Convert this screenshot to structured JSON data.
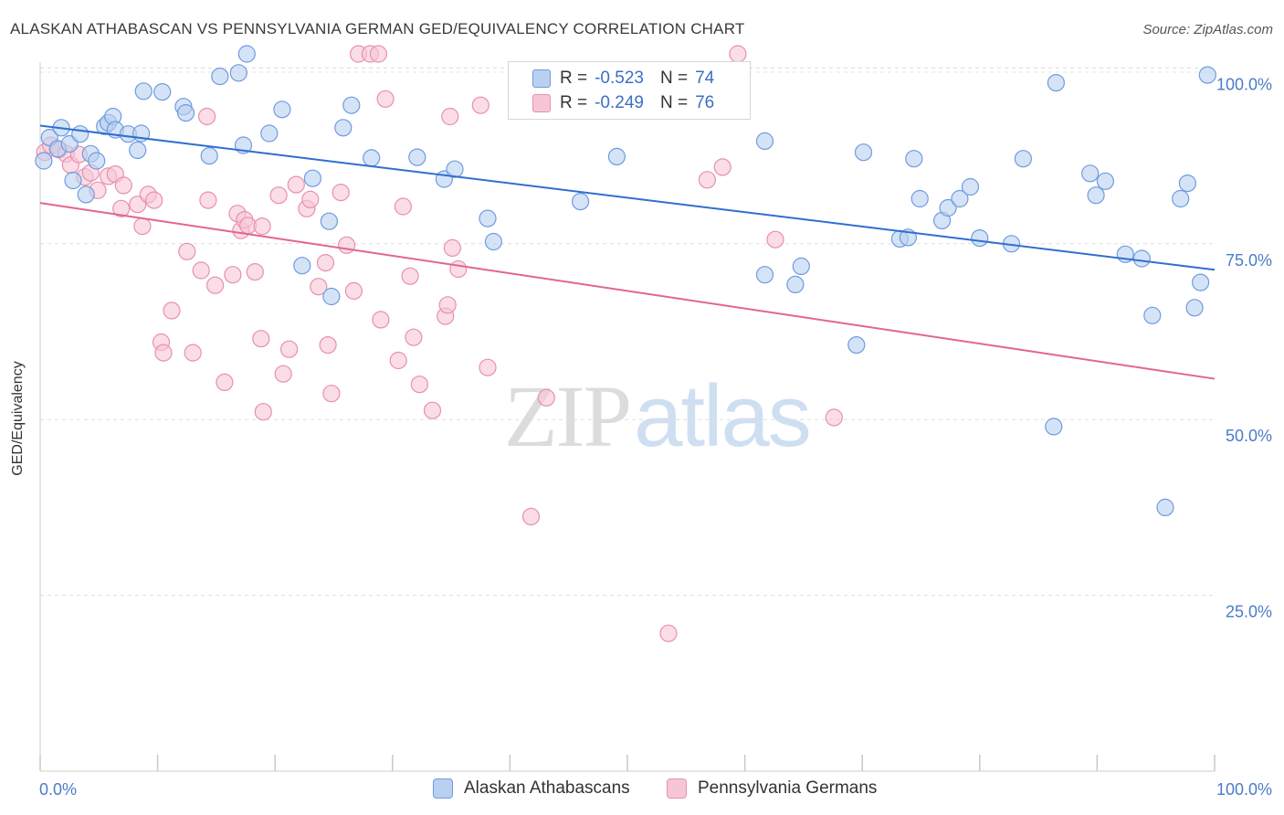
{
  "header": {
    "title": "ALASKAN ATHABASCAN VS PENNSYLVANIA GERMAN GED/EQUIVALENCY CORRELATION CHART",
    "source": "Source: ZipAtlas.com"
  },
  "watermark": {
    "zip": "ZIP",
    "atlas": "atlas"
  },
  "legend_top": {
    "rows": [
      {
        "r_label": "R =",
        "r_value": "-0.523",
        "n_label": "N =",
        "n_value": "74"
      },
      {
        "r_label": "R =",
        "r_value": "-0.249",
        "n_label": "N =",
        "n_value": "76"
      }
    ]
  },
  "legend_bottom": {
    "items": [
      "Alaskan Athabascans",
      "Pennsylvania Germans"
    ]
  },
  "colors": {
    "blue_fill": "#b9d0f0",
    "blue_stroke": "#6f9be0",
    "blue_line": "#2f6fd0",
    "pink_fill": "#f7c6d6",
    "pink_stroke": "#e890ad",
    "pink_line": "#e2668f",
    "tick_text": "#4a7cc9"
  },
  "chart_data": {
    "type": "scatter",
    "title": "ALASKAN ATHABASCAN VS PENNSYLVANIA GERMAN GED/EQUIVALENCY CORRELATION CHART",
    "xlabel": "",
    "ylabel": "GED/Equivalency",
    "xlim": [
      0,
      100
    ],
    "ylim": [
      0,
      102
    ],
    "x_tick_labels": [
      "0.0%",
      "100.0%"
    ],
    "y_ticks": [
      25,
      50,
      75,
      100
    ],
    "y_tick_labels": [
      "25.0%",
      "50.0%",
      "75.0%",
      "100.0%"
    ],
    "grid": "horizontal dashed",
    "legend_placement": "bottom",
    "series": [
      {
        "name": "Alaskan Athabascans",
        "color": "#6f9be0",
        "r": -0.523,
        "n": 74,
        "trend": {
          "x": [
            0,
            100
          ],
          "y": [
            91.8,
            71.3
          ]
        },
        "points": [
          [
            0.3,
            86.8
          ],
          [
            0.8,
            90.1
          ],
          [
            1.5,
            88.5
          ],
          [
            1.8,
            91.5
          ],
          [
            2.5,
            89.2
          ],
          [
            2.8,
            84.0
          ],
          [
            3.4,
            90.6
          ],
          [
            3.9,
            82.0
          ],
          [
            4.3,
            87.8
          ],
          [
            4.8,
            86.8
          ],
          [
            5.5,
            91.7
          ],
          [
            5.8,
            92.2
          ],
          [
            6.2,
            93.1
          ],
          [
            6.4,
            91.2
          ],
          [
            7.5,
            90.6
          ],
          [
            8.3,
            88.3
          ],
          [
            8.6,
            90.7
          ],
          [
            8.8,
            96.7
          ],
          [
            10.4,
            96.6
          ],
          [
            12.2,
            94.5
          ],
          [
            12.4,
            93.6
          ],
          [
            14.4,
            87.5
          ],
          [
            15.3,
            98.8
          ],
          [
            16.9,
            99.3
          ],
          [
            17.3,
            89.0
          ],
          [
            17.6,
            102.0
          ],
          [
            19.5,
            90.7
          ],
          [
            20.6,
            94.1
          ],
          [
            22.3,
            71.9
          ],
          [
            23.2,
            84.3
          ],
          [
            24.6,
            78.2
          ],
          [
            24.8,
            67.5
          ],
          [
            25.8,
            91.5
          ],
          [
            26.5,
            94.7
          ],
          [
            28.2,
            87.2
          ],
          [
            32.1,
            87.3
          ],
          [
            34.4,
            84.2
          ],
          [
            35.3,
            85.6
          ],
          [
            38.1,
            78.6
          ],
          [
            38.6,
            75.3
          ],
          [
            46.0,
            81.0
          ],
          [
            49.1,
            87.4
          ],
          [
            57.1,
            94.5
          ],
          [
            61.7,
            70.6
          ],
          [
            61.7,
            89.6
          ],
          [
            64.3,
            69.2
          ],
          [
            64.8,
            71.8
          ],
          [
            69.5,
            60.6
          ],
          [
            70.1,
            88.0
          ],
          [
            73.2,
            75.7
          ],
          [
            73.9,
            75.9
          ],
          [
            74.4,
            87.1
          ],
          [
            74.9,
            81.4
          ],
          [
            76.8,
            78.3
          ],
          [
            77.3,
            80.1
          ],
          [
            78.3,
            81.4
          ],
          [
            79.2,
            83.1
          ],
          [
            80.0,
            75.8
          ],
          [
            82.7,
            75.0
          ],
          [
            83.7,
            87.1
          ],
          [
            86.3,
            49.0
          ],
          [
            86.5,
            97.9
          ],
          [
            89.4,
            85.0
          ],
          [
            89.9,
            81.9
          ],
          [
            90.7,
            83.9
          ],
          [
            92.4,
            73.5
          ],
          [
            93.8,
            72.9
          ],
          [
            94.7,
            64.8
          ],
          [
            95.8,
            37.5
          ],
          [
            97.1,
            81.4
          ],
          [
            97.7,
            83.6
          ],
          [
            98.3,
            65.9
          ],
          [
            98.8,
            69.5
          ],
          [
            99.4,
            99.0
          ]
        ]
      },
      {
        "name": "Pennsylvania Germans",
        "color": "#e890ad",
        "r": -0.249,
        "n": 76,
        "trend": {
          "x": [
            0,
            100
          ],
          "y": [
            80.8,
            55.8
          ]
        },
        "points": [
          [
            0.4,
            88.0
          ],
          [
            0.9,
            89.0
          ],
          [
            1.6,
            88.4
          ],
          [
            2.2,
            87.8
          ],
          [
            2.6,
            86.2
          ],
          [
            3.3,
            87.7
          ],
          [
            3.8,
            84.5
          ],
          [
            4.3,
            85.1
          ],
          [
            4.9,
            82.6
          ],
          [
            5.8,
            84.6
          ],
          [
            6.4,
            84.9
          ],
          [
            6.9,
            80.0
          ],
          [
            7.1,
            83.3
          ],
          [
            8.3,
            80.6
          ],
          [
            8.7,
            77.5
          ],
          [
            9.2,
            82.0
          ],
          [
            9.7,
            81.2
          ],
          [
            10.3,
            61.0
          ],
          [
            10.5,
            59.5
          ],
          [
            11.2,
            65.5
          ],
          [
            12.5,
            73.9
          ],
          [
            13.0,
            59.5
          ],
          [
            13.7,
            71.2
          ],
          [
            14.2,
            93.1
          ],
          [
            14.3,
            81.2
          ],
          [
            14.9,
            69.1
          ],
          [
            15.7,
            55.3
          ],
          [
            16.4,
            70.6
          ],
          [
            16.8,
            79.3
          ],
          [
            17.1,
            76.9
          ],
          [
            17.4,
            78.4
          ],
          [
            17.7,
            77.6
          ],
          [
            18.3,
            71.0
          ],
          [
            18.8,
            61.5
          ],
          [
            18.9,
            77.5
          ],
          [
            19.0,
            51.1
          ],
          [
            20.3,
            81.9
          ],
          [
            20.7,
            56.5
          ],
          [
            21.2,
            60.0
          ],
          [
            21.8,
            83.4
          ],
          [
            22.7,
            80.0
          ],
          [
            23.0,
            81.3
          ],
          [
            23.7,
            68.9
          ],
          [
            24.3,
            72.3
          ],
          [
            24.5,
            60.6
          ],
          [
            24.8,
            53.7
          ],
          [
            25.6,
            82.3
          ],
          [
            26.1,
            74.8
          ],
          [
            26.7,
            68.3
          ],
          [
            27.1,
            102.0
          ],
          [
            28.1,
            102.0
          ],
          [
            28.8,
            102.0
          ],
          [
            29.0,
            64.2
          ],
          [
            29.4,
            95.6
          ],
          [
            30.5,
            58.4
          ],
          [
            30.9,
            80.3
          ],
          [
            31.5,
            70.4
          ],
          [
            31.8,
            61.7
          ],
          [
            32.3,
            55.0
          ],
          [
            33.4,
            51.3
          ],
          [
            34.5,
            64.7
          ],
          [
            34.9,
            93.1
          ],
          [
            35.1,
            74.4
          ],
          [
            34.7,
            66.3
          ],
          [
            35.6,
            71.4
          ],
          [
            37.5,
            94.7
          ],
          [
            38.1,
            57.4
          ],
          [
            41.8,
            36.2
          ],
          [
            43.1,
            53.1
          ],
          [
            44.6,
            94.6
          ],
          [
            53.5,
            19.6
          ],
          [
            56.8,
            84.1
          ],
          [
            58.1,
            85.9
          ],
          [
            59.4,
            102.0
          ],
          [
            62.6,
            75.6
          ],
          [
            67.6,
            50.3
          ]
        ]
      }
    ]
  }
}
